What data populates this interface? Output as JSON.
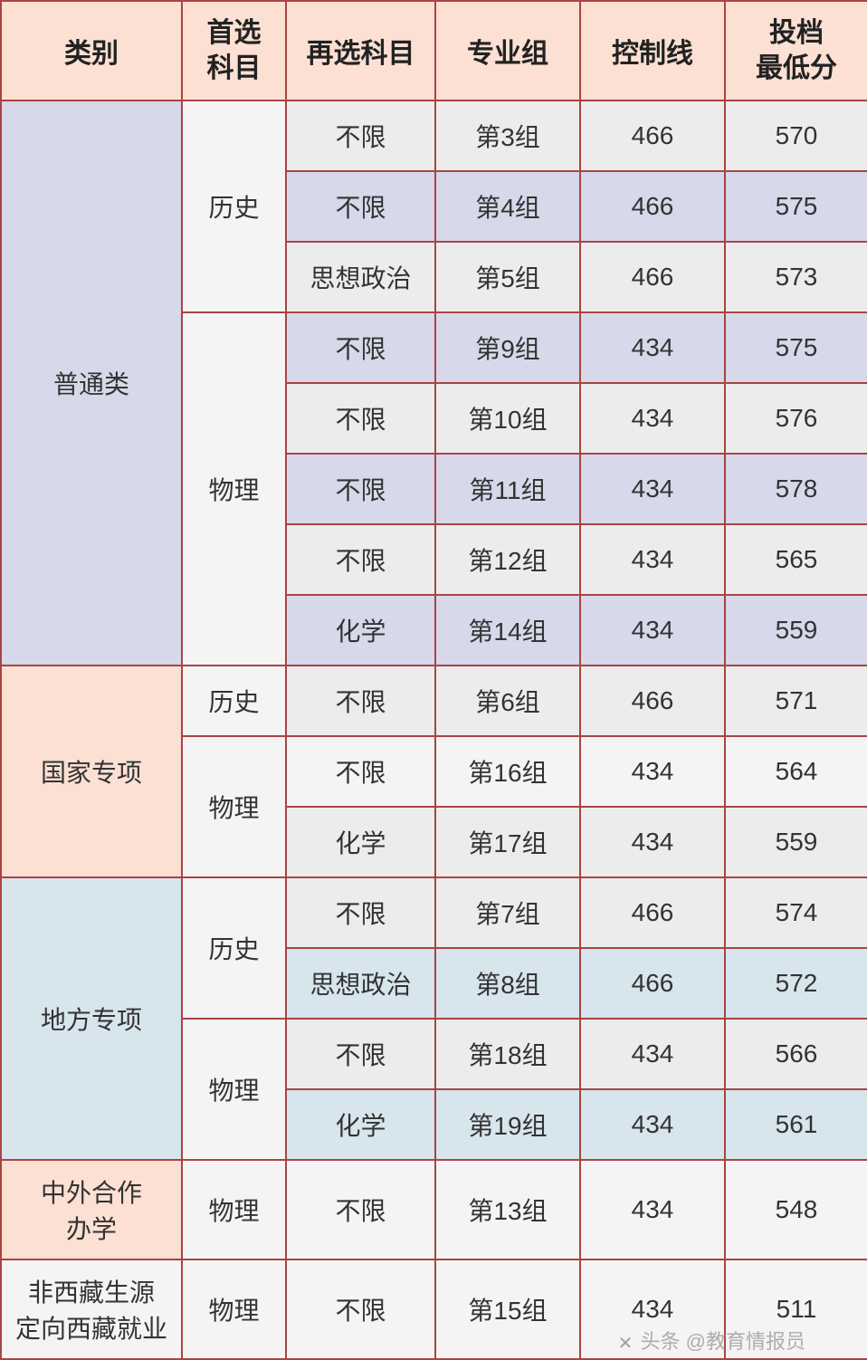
{
  "colors": {
    "header_bg": "#fbe0d3",
    "border": "#a94442",
    "cat_putong": "#d7d8ea",
    "cat_guojia": "#fbe0d3",
    "cat_difang": "#d7e5ed",
    "cat_zhongwai": "#fbe0d3",
    "cat_xizang": "#f4f4f4",
    "row_gray": "#edecec",
    "row_purple": "#d7d8ea",
    "row_lightblue": "#d7e5ed",
    "row_plain": "#f4f4f4"
  },
  "headers": {
    "c1": "类别",
    "c2": "首选科目",
    "c3": "再选科目",
    "c4": "专业组",
    "c5": "控制线",
    "c6": "投档最低分"
  },
  "watermark": "头条 @教育情报员",
  "rows": [
    {
      "cat": "普通类",
      "cat_rowspan": 8,
      "cat_color": "cat_putong",
      "sub": "历史",
      "sub_rowspan": 3,
      "sub_color": "row_plain",
      "sel": "不限",
      "grp": "第3组",
      "ctl": "466",
      "min": "570",
      "data_color": "row_gray"
    },
    {
      "sel": "不限",
      "grp": "第4组",
      "ctl": "466",
      "min": "575",
      "data_color": "row_purple"
    },
    {
      "sel": "思想政治",
      "grp": "第5组",
      "ctl": "466",
      "min": "573",
      "data_color": "row_gray"
    },
    {
      "sub": "物理",
      "sub_rowspan": 5,
      "sub_color": "row_plain",
      "sel": "不限",
      "grp": "第9组",
      "ctl": "434",
      "min": "575",
      "data_color": "row_purple"
    },
    {
      "sel": "不限",
      "grp": "第10组",
      "ctl": "434",
      "min": "576",
      "data_color": "row_gray"
    },
    {
      "sel": "不限",
      "grp": "第11组",
      "ctl": "434",
      "min": "578",
      "data_color": "row_purple"
    },
    {
      "sel": "不限",
      "grp": "第12组",
      "ctl": "434",
      "min": "565",
      "data_color": "row_gray"
    },
    {
      "sel": "化学",
      "grp": "第14组",
      "ctl": "434",
      "min": "559",
      "data_color": "row_purple"
    },
    {
      "cat": "国家专项",
      "cat_rowspan": 3,
      "cat_color": "cat_guojia",
      "sub": "历史",
      "sub_rowspan": 1,
      "sub_color": "row_plain",
      "sel": "不限",
      "grp": "第6组",
      "ctl": "466",
      "min": "571",
      "data_color": "row_gray"
    },
    {
      "sub": "物理",
      "sub_rowspan": 2,
      "sub_color": "row_plain",
      "sel": "不限",
      "grp": "第16组",
      "ctl": "434",
      "min": "564",
      "data_color": "row_plain"
    },
    {
      "sel": "化学",
      "grp": "第17组",
      "ctl": "434",
      "min": "559",
      "data_color": "row_gray"
    },
    {
      "cat": "地方专项",
      "cat_rowspan": 4,
      "cat_color": "cat_difang",
      "sub": "历史",
      "sub_rowspan": 2,
      "sub_color": "row_plain",
      "sel": "不限",
      "grp": "第7组",
      "ctl": "466",
      "min": "574",
      "data_color": "row_gray"
    },
    {
      "sel": "思想政治",
      "grp": "第8组",
      "ctl": "466",
      "min": "572",
      "data_color": "row_lightblue"
    },
    {
      "sub": "物理",
      "sub_rowspan": 2,
      "sub_color": "row_plain",
      "sel": "不限",
      "grp": "第18组",
      "ctl": "434",
      "min": "566",
      "data_color": "row_gray"
    },
    {
      "sel": "化学",
      "grp": "第19组",
      "ctl": "434",
      "min": "561",
      "data_color": "row_lightblue"
    },
    {
      "cat": "中外合作办学",
      "cat_rowspan": 1,
      "cat_color": "cat_zhongwai",
      "sub": "物理",
      "sub_rowspan": 1,
      "sub_color": "row_plain",
      "sel": "不限",
      "grp": "第13组",
      "ctl": "434",
      "min": "548",
      "data_color": "row_plain",
      "tall": true
    },
    {
      "cat": "非西藏生源定向西藏就业",
      "cat_rowspan": 1,
      "cat_color": "cat_xizang",
      "sub": "物理",
      "sub_rowspan": 1,
      "sub_color": "row_plain",
      "sel": "不限",
      "grp": "第15组",
      "ctl": "434",
      "min": "511",
      "data_color": "row_plain",
      "tall": true
    }
  ]
}
